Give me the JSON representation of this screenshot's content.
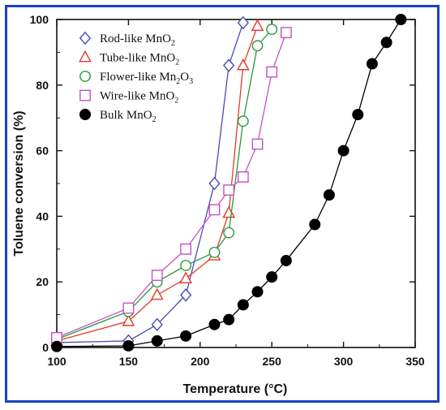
{
  "chart_data": {
    "type": "scatter",
    "title": "",
    "xlabel": "Temperature (°C)",
    "ylabel": "Toluene conversion (%)",
    "xlim": [
      100,
      350
    ],
    "ylim": [
      0,
      100
    ],
    "xticks": [
      100,
      150,
      200,
      250,
      300,
      350
    ],
    "yticks": [
      0,
      20,
      40,
      60,
      80,
      100
    ],
    "legend_position": "top-left",
    "series": [
      {
        "name": "Rod-like MnO2",
        "legend_label": [
          "Rod-like MnO",
          "2",
          ""
        ],
        "marker": "diamond-open",
        "color": "#4a4ab8",
        "x": [
          100,
          150,
          170,
          190,
          210,
          220,
          230
        ],
        "y": [
          1.5,
          2,
          7,
          16,
          50,
          86,
          99
        ]
      },
      {
        "name": "Tube-like MnO2",
        "legend_label": [
          "Tube-like MnO",
          "2",
          ""
        ],
        "marker": "triangle-open",
        "color": "#e03a2a",
        "x": [
          100,
          150,
          170,
          190,
          210,
          220,
          230,
          240
        ],
        "y": [
          2,
          8,
          16,
          21,
          28,
          41,
          86,
          98
        ]
      },
      {
        "name": "Flower-like Mn2O3",
        "legend_label": [
          "Flower-like Mn",
          "2",
          "O",
          "3"
        ],
        "marker": "circle-open",
        "color": "#2a9a3a",
        "x": [
          100,
          150,
          170,
          190,
          210,
          220,
          230,
          240,
          250
        ],
        "y": [
          2.5,
          11,
          20,
          25,
          29,
          35,
          69,
          92,
          97
        ]
      },
      {
        "name": "Wire-like MnO2",
        "legend_label": [
          "Wire-like MnO",
          "2",
          ""
        ],
        "marker": "square-open",
        "color": "#c64fc6",
        "x": [
          100,
          150,
          170,
          190,
          210,
          220,
          230,
          240,
          250,
          260
        ],
        "y": [
          3,
          12,
          22,
          30,
          42,
          48,
          52,
          62,
          84,
          96
        ]
      },
      {
        "name": "Bulk MnO2",
        "legend_label": [
          "Bulk MnO",
          "2",
          ""
        ],
        "marker": "circle-filled",
        "color": "#000000",
        "x": [
          100,
          150,
          170,
          190,
          210,
          220,
          230,
          240,
          250,
          260,
          280,
          290,
          300,
          310,
          320,
          330,
          340
        ],
        "y": [
          0.3,
          0.5,
          2,
          3.5,
          7,
          8.5,
          13,
          17,
          21.5,
          26.5,
          37.5,
          46.5,
          60,
          71,
          86.5,
          93,
          100
        ]
      }
    ]
  }
}
